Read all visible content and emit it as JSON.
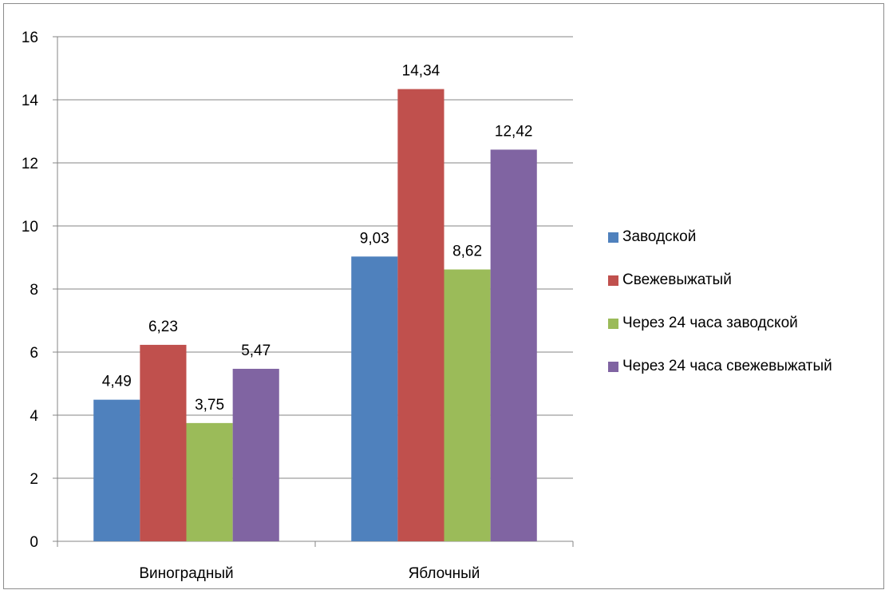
{
  "chart_data": {
    "type": "bar",
    "categories": [
      "Виноградный",
      "Яблочный"
    ],
    "series": [
      {
        "name": "Заводской",
        "values": [
          4.49,
          9.03
        ],
        "color": "#4f81bd"
      },
      {
        "name": "Свежевыжатый",
        "values": [
          6.23,
          14.34
        ],
        "color": "#c0504d"
      },
      {
        "name": "Через 24 часа заводской",
        "values": [
          3.75,
          8.62
        ],
        "color": "#9bbb59"
      },
      {
        "name": "Через 24 часа свежевыжатый",
        "values": [
          5.47,
          12.42
        ],
        "color": "#8064a2"
      }
    ],
    "data_labels": [
      [
        "4,49",
        "9,03"
      ],
      [
        "6,23",
        "14,34"
      ],
      [
        "3,75",
        "8,62"
      ],
      [
        "5,47",
        "12,42"
      ]
    ],
    "y_ticks": [
      "0",
      "2",
      "4",
      "6",
      "8",
      "10",
      "12",
      "14",
      "16"
    ],
    "ylim": [
      0,
      16
    ],
    "title": "",
    "xlabel": "",
    "ylabel": "",
    "grid": true,
    "legend_position": "right"
  }
}
